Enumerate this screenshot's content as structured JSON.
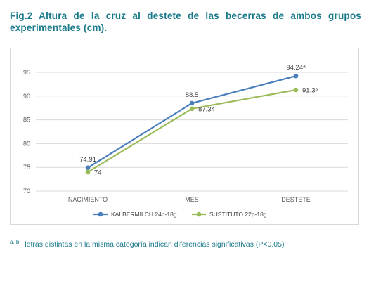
{
  "figure": {
    "title": "Fig.2 Altura de la cruz al destete de las becerras de ambos grupos experimentales (cm).",
    "footnote_marks": "a, b",
    "footnote_text": "letras distintas en la misma categoría indican diferencias significativas (P<0.05)"
  },
  "colors": {
    "title": "#1a7a8a",
    "series1": "#4a7ebb",
    "series2": "#9bbb59",
    "grid": "#d9d9d9"
  },
  "chart_data": {
    "type": "line",
    "title": "",
    "xlabel": "",
    "ylabel": "",
    "categories": [
      "NACIMIENTO",
      "MES",
      "DESTETE"
    ],
    "ylim": [
      70,
      95
    ],
    "yticks": [
      70,
      75,
      80,
      85,
      90,
      95
    ],
    "grid": true,
    "legend_position": "bottom",
    "series": [
      {
        "name": "KALBERMILCH 24p-18g",
        "values": [
          74.91,
          88.5,
          94.24
        ],
        "labels": [
          "74.91",
          "88.5",
          "94.24ᵃ"
        ],
        "color": "#4a7ebb"
      },
      {
        "name": "SUSTITUTO 22p-18g",
        "values": [
          74,
          87.34,
          91.3
        ],
        "labels": [
          "74",
          "87.34",
          "91.3ᵇ"
        ],
        "color": "#9bbb59"
      }
    ]
  }
}
